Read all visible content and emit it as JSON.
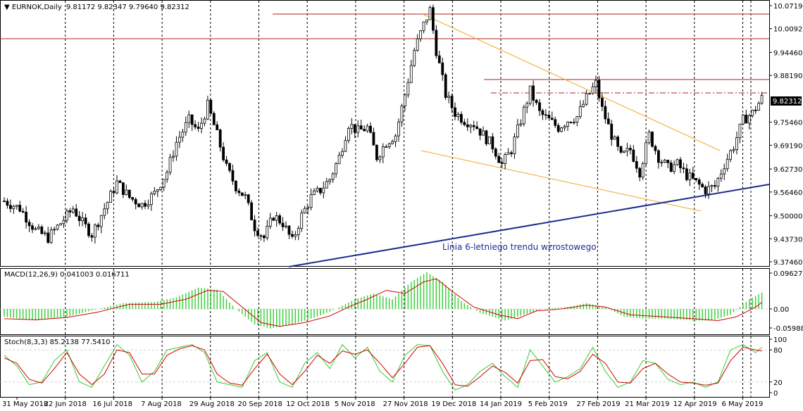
{
  "chart_data": {
    "type": "candlestick",
    "symbol_header": "EURNOK,Daily",
    "ohlc_header": "9.81172 9.82347 9.79640 9.82312",
    "current_price": "9.82312",
    "annotation": "Linia 6-letniego trendu wzrostowego",
    "price_axis": {
      "range": [
        9.3746,
        10.0719
      ],
      "ticks": [
        "10.07190",
        "10.00920",
        "9.94460",
        "9.88190",
        "9.75460",
        "9.69190",
        "9.62730",
        "9.56460",
        "9.50000",
        "9.43730",
        "9.37460"
      ]
    },
    "x_labels": [
      "31 May 2018",
      "22 Jun 2018",
      "16 Jul 2018",
      "7 Aug 2018",
      "29 Aug 2018",
      "20 Sep 2018",
      "12 Oct 2018",
      "5 Nov 2018",
      "27 Nov 2018",
      "19 Dec 2018",
      "14 Jan 2019",
      "5 Feb 2019",
      "27 Feb 2019",
      "21 Mar 2019",
      "12 Apr 2019",
      "6 May 2019"
    ],
    "close_anchors": [
      [
        0,
        9.54
      ],
      [
        5,
        9.52
      ],
      [
        10,
        9.46
      ],
      [
        14,
        9.44
      ],
      [
        18,
        9.48
      ],
      [
        22,
        9.52
      ],
      [
        25,
        9.48
      ],
      [
        28,
        9.45
      ],
      [
        32,
        9.52
      ],
      [
        36,
        9.59
      ],
      [
        40,
        9.55
      ],
      [
        44,
        9.53
      ],
      [
        48,
        9.56
      ],
      [
        52,
        9.62
      ],
      [
        55,
        9.7
      ],
      [
        59,
        9.76
      ],
      [
        62,
        9.73
      ],
      [
        65,
        9.8
      ],
      [
        68,
        9.72
      ],
      [
        71,
        9.63
      ],
      [
        74,
        9.58
      ],
      [
        77,
        9.55
      ],
      [
        80,
        9.47
      ],
      [
        83,
        9.44
      ],
      [
        86,
        9.5
      ],
      [
        89,
        9.48
      ],
      [
        92,
        9.43
      ],
      [
        95,
        9.5
      ],
      [
        98,
        9.55
      ],
      [
        101,
        9.57
      ],
      [
        104,
        9.6
      ],
      [
        107,
        9.66
      ],
      [
        110,
        9.75
      ],
      [
        113,
        9.73
      ],
      [
        116,
        9.74
      ],
      [
        119,
        9.66
      ],
      [
        122,
        9.7
      ],
      [
        125,
        9.72
      ],
      [
        128,
        9.83
      ],
      [
        131,
        9.95
      ],
      [
        134,
        10.02
      ],
      [
        136,
        10.06
      ],
      [
        138,
        9.95
      ],
      [
        141,
        9.83
      ],
      [
        144,
        9.78
      ],
      [
        147,
        9.76
      ],
      [
        150,
        9.75
      ],
      [
        153,
        9.72
      ],
      [
        156,
        9.69
      ],
      [
        159,
        9.64
      ],
      [
        162,
        9.68
      ],
      [
        165,
        9.76
      ],
      [
        168,
        9.84
      ],
      [
        171,
        9.78
      ],
      [
        174,
        9.76
      ],
      [
        177,
        9.74
      ],
      [
        180,
        9.76
      ],
      [
        183,
        9.77
      ],
      [
        186,
        9.82
      ],
      [
        189,
        9.86
      ],
      [
        191,
        9.79
      ],
      [
        194,
        9.72
      ],
      [
        197,
        9.66
      ],
      [
        200,
        9.68
      ],
      [
        203,
        9.62
      ],
      [
        206,
        9.72
      ],
      [
        209,
        9.66
      ],
      [
        212,
        9.63
      ],
      [
        215,
        9.64
      ],
      [
        218,
        9.61
      ],
      [
        221,
        9.59
      ],
      [
        224,
        9.57
      ],
      [
        227,
        9.58
      ],
      [
        230,
        9.64
      ],
      [
        233,
        9.69
      ],
      [
        236,
        9.76
      ],
      [
        239,
        9.78
      ],
      [
        242,
        9.82
      ]
    ],
    "macd": {
      "header": "MACD(12,26,9) 0.041003 0.016711",
      "range": [
        -0.05988,
        0.09627
      ],
      "ticks": [
        "0.09627",
        "0.00",
        "-0.059884"
      ],
      "hist_anchors": [
        [
          0,
          -0.02
        ],
        [
          10,
          -0.03
        ],
        [
          20,
          -0.02
        ],
        [
          30,
          0.0
        ],
        [
          38,
          0.015
        ],
        [
          48,
          0.018
        ],
        [
          55,
          0.03
        ],
        [
          62,
          0.055
        ],
        [
          68,
          0.05
        ],
        [
          74,
          0.0
        ],
        [
          80,
          -0.04
        ],
        [
          85,
          -0.05
        ],
        [
          92,
          -0.04
        ],
        [
          100,
          -0.02
        ],
        [
          106,
          0.0
        ],
        [
          112,
          0.025
        ],
        [
          118,
          0.04
        ],
        [
          124,
          0.025
        ],
        [
          130,
          0.07
        ],
        [
          135,
          0.095
        ],
        [
          140,
          0.07
        ],
        [
          146,
          0.02
        ],
        [
          152,
          -0.01
        ],
        [
          160,
          -0.03
        ],
        [
          166,
          -0.015
        ],
        [
          172,
          0.0
        ],
        [
          180,
          0.005
        ],
        [
          186,
          0.015
        ],
        [
          192,
          0.005
        ],
        [
          198,
          -0.02
        ],
        [
          204,
          -0.025
        ],
        [
          212,
          -0.025
        ],
        [
          220,
          -0.03
        ],
        [
          226,
          -0.03
        ],
        [
          232,
          -0.015
        ],
        [
          238,
          0.025
        ],
        [
          242,
          0.042
        ]
      ],
      "signal_anchors": [
        [
          0,
          -0.025
        ],
        [
          10,
          -0.028
        ],
        [
          20,
          -0.022
        ],
        [
          30,
          -0.008
        ],
        [
          40,
          0.012
        ],
        [
          50,
          0.012
        ],
        [
          58,
          0.025
        ],
        [
          65,
          0.048
        ],
        [
          70,
          0.045
        ],
        [
          76,
          0.005
        ],
        [
          82,
          -0.035
        ],
        [
          88,
          -0.045
        ],
        [
          96,
          -0.035
        ],
        [
          104,
          -0.018
        ],
        [
          110,
          0.005
        ],
        [
          116,
          0.025
        ],
        [
          122,
          0.048
        ],
        [
          128,
          0.04
        ],
        [
          134,
          0.07
        ],
        [
          138,
          0.078
        ],
        [
          144,
          0.04
        ],
        [
          150,
          0.005
        ],
        [
          158,
          -0.015
        ],
        [
          164,
          -0.025
        ],
        [
          170,
          -0.005
        ],
        [
          178,
          0.0
        ],
        [
          186,
          0.01
        ],
        [
          192,
          0.005
        ],
        [
          200,
          -0.015
        ],
        [
          210,
          -0.02
        ],
        [
          220,
          -0.025
        ],
        [
          228,
          -0.03
        ],
        [
          234,
          -0.02
        ],
        [
          240,
          0.005
        ],
        [
          242,
          0.017
        ]
      ]
    },
    "stoch": {
      "header": "Stoch(8,3,3) 85.2138 77.5410",
      "ticks": [
        "100",
        "80",
        "20",
        "0"
      ],
      "main_anchors": [
        [
          0,
          70
        ],
        [
          4,
          50
        ],
        [
          8,
          15
        ],
        [
          12,
          20
        ],
        [
          16,
          60
        ],
        [
          20,
          80
        ],
        [
          24,
          20
        ],
        [
          28,
          10
        ],
        [
          32,
          50
        ],
        [
          36,
          90
        ],
        [
          40,
          70
        ],
        [
          44,
          20
        ],
        [
          48,
          40
        ],
        [
          52,
          80
        ],
        [
          56,
          85
        ],
        [
          60,
          90
        ],
        [
          64,
          75
        ],
        [
          68,
          20
        ],
        [
          72,
          15
        ],
        [
          76,
          10
        ],
        [
          80,
          60
        ],
        [
          84,
          75
        ],
        [
          88,
          20
        ],
        [
          92,
          10
        ],
        [
          96,
          55
        ],
        [
          100,
          75
        ],
        [
          104,
          45
        ],
        [
          108,
          90
        ],
        [
          112,
          65
        ],
        [
          116,
          85
        ],
        [
          120,
          40
        ],
        [
          124,
          20
        ],
        [
          128,
          70
        ],
        [
          132,
          90
        ],
        [
          136,
          88
        ],
        [
          140,
          40
        ],
        [
          144,
          5
        ],
        [
          148,
          15
        ],
        [
          152,
          40
        ],
        [
          156,
          55
        ],
        [
          160,
          30
        ],
        [
          164,
          10
        ],
        [
          168,
          80
        ],
        [
          172,
          50
        ],
        [
          176,
          20
        ],
        [
          180,
          30
        ],
        [
          184,
          45
        ],
        [
          188,
          85
        ],
        [
          192,
          40
        ],
        [
          196,
          10
        ],
        [
          200,
          20
        ],
        [
          204,
          60
        ],
        [
          208,
          55
        ],
        [
          212,
          25
        ],
        [
          216,
          15
        ],
        [
          220,
          20
        ],
        [
          224,
          10
        ],
        [
          228,
          20
        ],
        [
          232,
          80
        ],
        [
          236,
          90
        ],
        [
          240,
          75
        ],
        [
          242,
          85
        ]
      ],
      "signal_anchors": [
        [
          0,
          65
        ],
        [
          4,
          55
        ],
        [
          8,
          25
        ],
        [
          12,
          18
        ],
        [
          16,
          45
        ],
        [
          20,
          75
        ],
        [
          24,
          35
        ],
        [
          28,
          15
        ],
        [
          32,
          35
        ],
        [
          36,
          80
        ],
        [
          40,
          75
        ],
        [
          44,
          35
        ],
        [
          48,
          35
        ],
        [
          52,
          70
        ],
        [
          56,
          82
        ],
        [
          60,
          88
        ],
        [
          64,
          80
        ],
        [
          68,
          35
        ],
        [
          72,
          18
        ],
        [
          76,
          14
        ],
        [
          80,
          45
        ],
        [
          84,
          72
        ],
        [
          88,
          35
        ],
        [
          92,
          15
        ],
        [
          96,
          40
        ],
        [
          100,
          70
        ],
        [
          104,
          55
        ],
        [
          108,
          78
        ],
        [
          112,
          72
        ],
        [
          116,
          80
        ],
        [
          120,
          55
        ],
        [
          124,
          28
        ],
        [
          128,
          55
        ],
        [
          132,
          85
        ],
        [
          136,
          88
        ],
        [
          140,
          55
        ],
        [
          144,
          15
        ],
        [
          148,
          12
        ],
        [
          152,
          30
        ],
        [
          156,
          50
        ],
        [
          160,
          38
        ],
        [
          164,
          18
        ],
        [
          168,
          60
        ],
        [
          172,
          62
        ],
        [
          176,
          30
        ],
        [
          180,
          26
        ],
        [
          184,
          40
        ],
        [
          188,
          72
        ],
        [
          192,
          55
        ],
        [
          196,
          20
        ],
        [
          200,
          18
        ],
        [
          204,
          45
        ],
        [
          208,
          55
        ],
        [
          212,
          35
        ],
        [
          216,
          20
        ],
        [
          220,
          18
        ],
        [
          224,
          14
        ],
        [
          228,
          18
        ],
        [
          232,
          60
        ],
        [
          236,
          85
        ],
        [
          240,
          80
        ],
        [
          242,
          78
        ]
      ]
    }
  }
}
